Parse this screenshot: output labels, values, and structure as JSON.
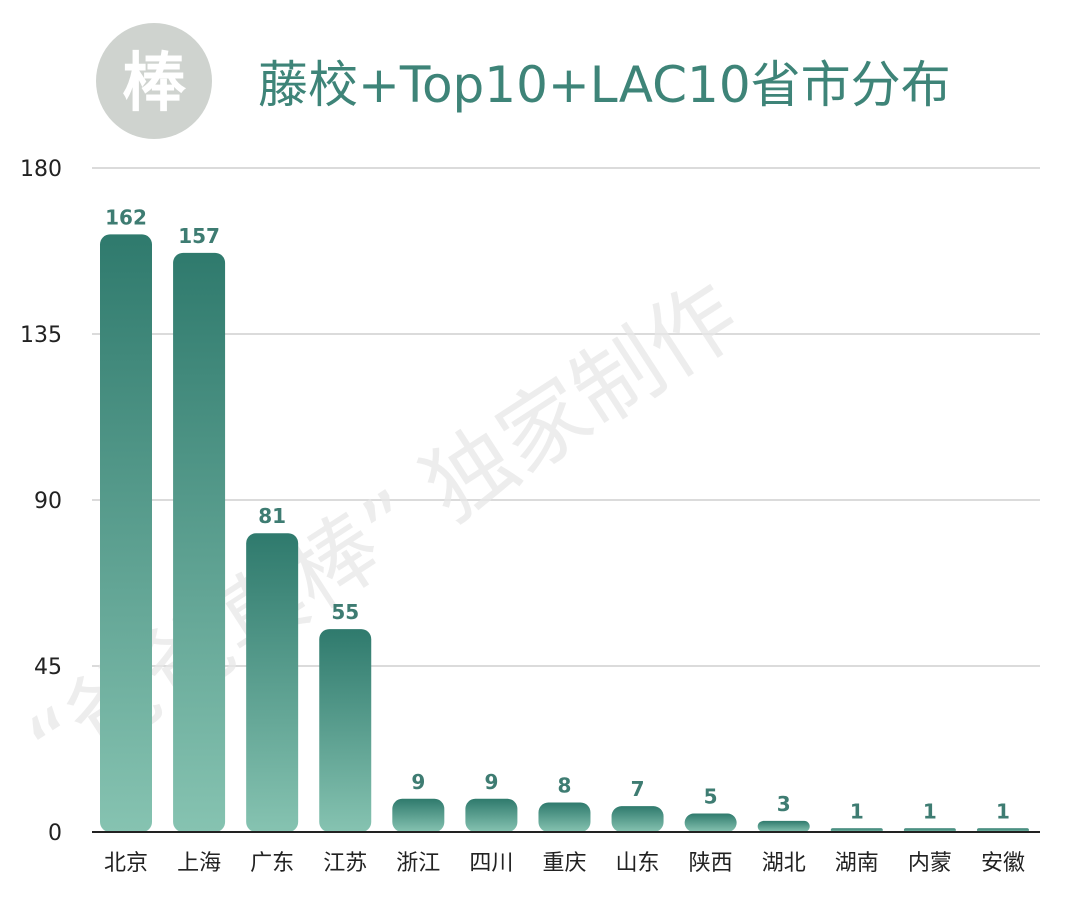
{
  "logo": {
    "glyph": "棒",
    "bg_color": "#cfd3cf",
    "text_color": "#ffffff"
  },
  "watermark": "“爸爸真棒” 独家制作",
  "colors": {
    "title": "#3e8478",
    "bar_top": "#2f7a6d",
    "bar_bottom": "#86c3b1",
    "label": "#3e7c72",
    "axis_text": "#222222",
    "grid": "#cfcfcf",
    "baseline": "#222222"
  },
  "chart_data": {
    "type": "bar",
    "title": "藤校+Top10+LAC10省市分布",
    "categories": [
      "北京",
      "上海",
      "广东",
      "江苏",
      "浙江",
      "四川",
      "重庆",
      "山东",
      "陕西",
      "湖北",
      "湖南",
      "内蒙",
      "安徽"
    ],
    "values": [
      162,
      157,
      81,
      55,
      9,
      9,
      8,
      7,
      5,
      3,
      1,
      1,
      1
    ],
    "data_labels": [
      "162",
      "157",
      "81",
      "55",
      "9",
      "9",
      "8",
      "7",
      "5",
      "3",
      "1",
      "1",
      "1"
    ],
    "yticks": [
      "0",
      "45",
      "90",
      "135",
      "180"
    ],
    "ytick_values": [
      0,
      45,
      90,
      135,
      180
    ],
    "ylim": [
      0,
      180
    ],
    "grid": true,
    "legend": "none"
  }
}
